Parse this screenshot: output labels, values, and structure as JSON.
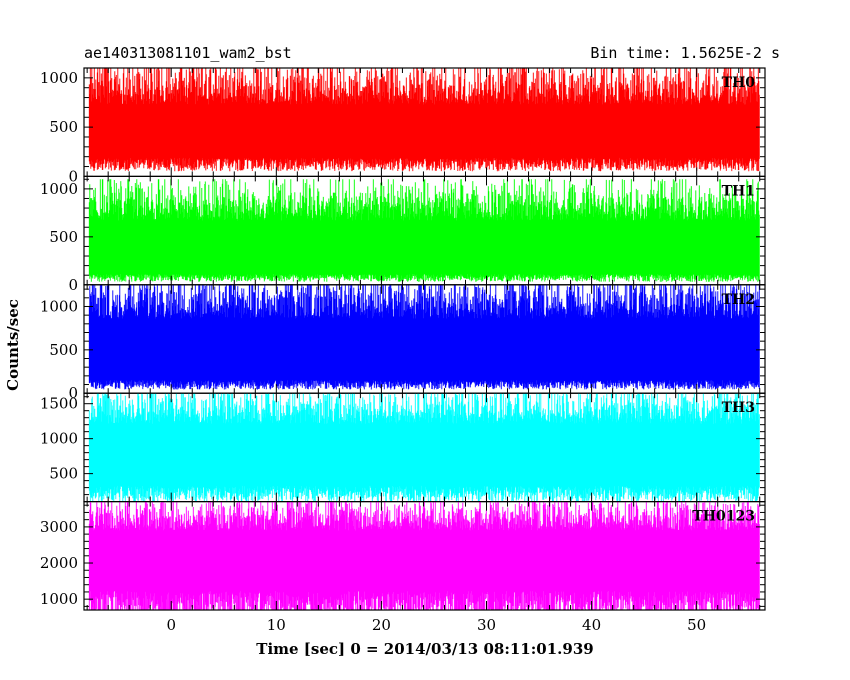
{
  "header": {
    "obs_id": "ae140313081101_wam2_bst",
    "bin_time": "Bin time: 1.5625E-2 s"
  },
  "chart_data": {
    "type": "line",
    "x_label": "Time [sec] 0 = 2014/03/13 08:11:01.939",
    "y_label": "Counts/sec",
    "x_range": [
      -8.3,
      56.5
    ],
    "data_x_range": [
      -7.8,
      56.0
    ],
    "x_ticks": [
      0,
      10,
      20,
      30,
      40,
      50
    ],
    "grid": false,
    "panels": [
      {
        "name": "TH0",
        "color": "#ff0000",
        "ylim": [
          0,
          1100
        ],
        "y_ticks": [
          0,
          500,
          1000
        ],
        "baseline": 150,
        "mean": 480,
        "spread": 250,
        "peak": 1100
      },
      {
        "name": "TH1",
        "color": "#00ff00",
        "ylim": [
          0,
          1130
        ],
        "y_ticks": [
          0,
          500,
          1000
        ],
        "baseline": 90,
        "mean": 430,
        "spread": 240,
        "peak": 1100
      },
      {
        "name": "TH2",
        "color": "#0000ff",
        "ylim": [
          0,
          1250
        ],
        "y_ticks": [
          0,
          500,
          1000
        ],
        "baseline": 120,
        "mean": 560,
        "spread": 300,
        "peak": 1250
      },
      {
        "name": "TH3",
        "color": "#00ffff",
        "ylim": [
          100,
          1650
        ],
        "y_ticks": [
          500,
          1000,
          1500
        ],
        "baseline": 260,
        "mean": 890,
        "spread": 320,
        "peak": 1650
      },
      {
        "name": "TH0123",
        "color": "#ff00ff",
        "ylim": [
          700,
          3700
        ],
        "y_ticks": [
          1000,
          2000,
          3000
        ],
        "baseline": 980,
        "mean": 2380,
        "spread": 520,
        "peak": 3700
      }
    ]
  }
}
